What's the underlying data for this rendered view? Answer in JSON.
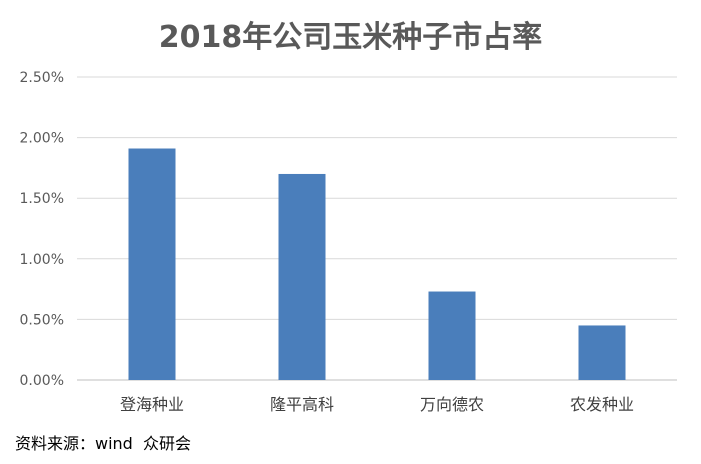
{
  "chart_data": {
    "type": "bar",
    "title": "2018年公司玉米种子市占率",
    "categories": [
      "登海种业",
      "隆平高科",
      "万向德农",
      "农发种业"
    ],
    "values": [
      1.91,
      1.7,
      0.73,
      0.45
    ],
    "unit": "%",
    "ylim": [
      0,
      2.5
    ],
    "yticks": [
      0,
      0.5,
      1.0,
      1.5,
      2.0,
      2.5
    ],
    "ytick_labels": [
      "0.00%",
      "0.50%",
      "1.00%",
      "1.50%",
      "2.00%",
      "2.50%"
    ],
    "grid": true,
    "legend": "none",
    "bar_color": "#4A7EBB",
    "xlabel": "",
    "ylabel": ""
  },
  "source_note": "资料来源：wind  众研会"
}
